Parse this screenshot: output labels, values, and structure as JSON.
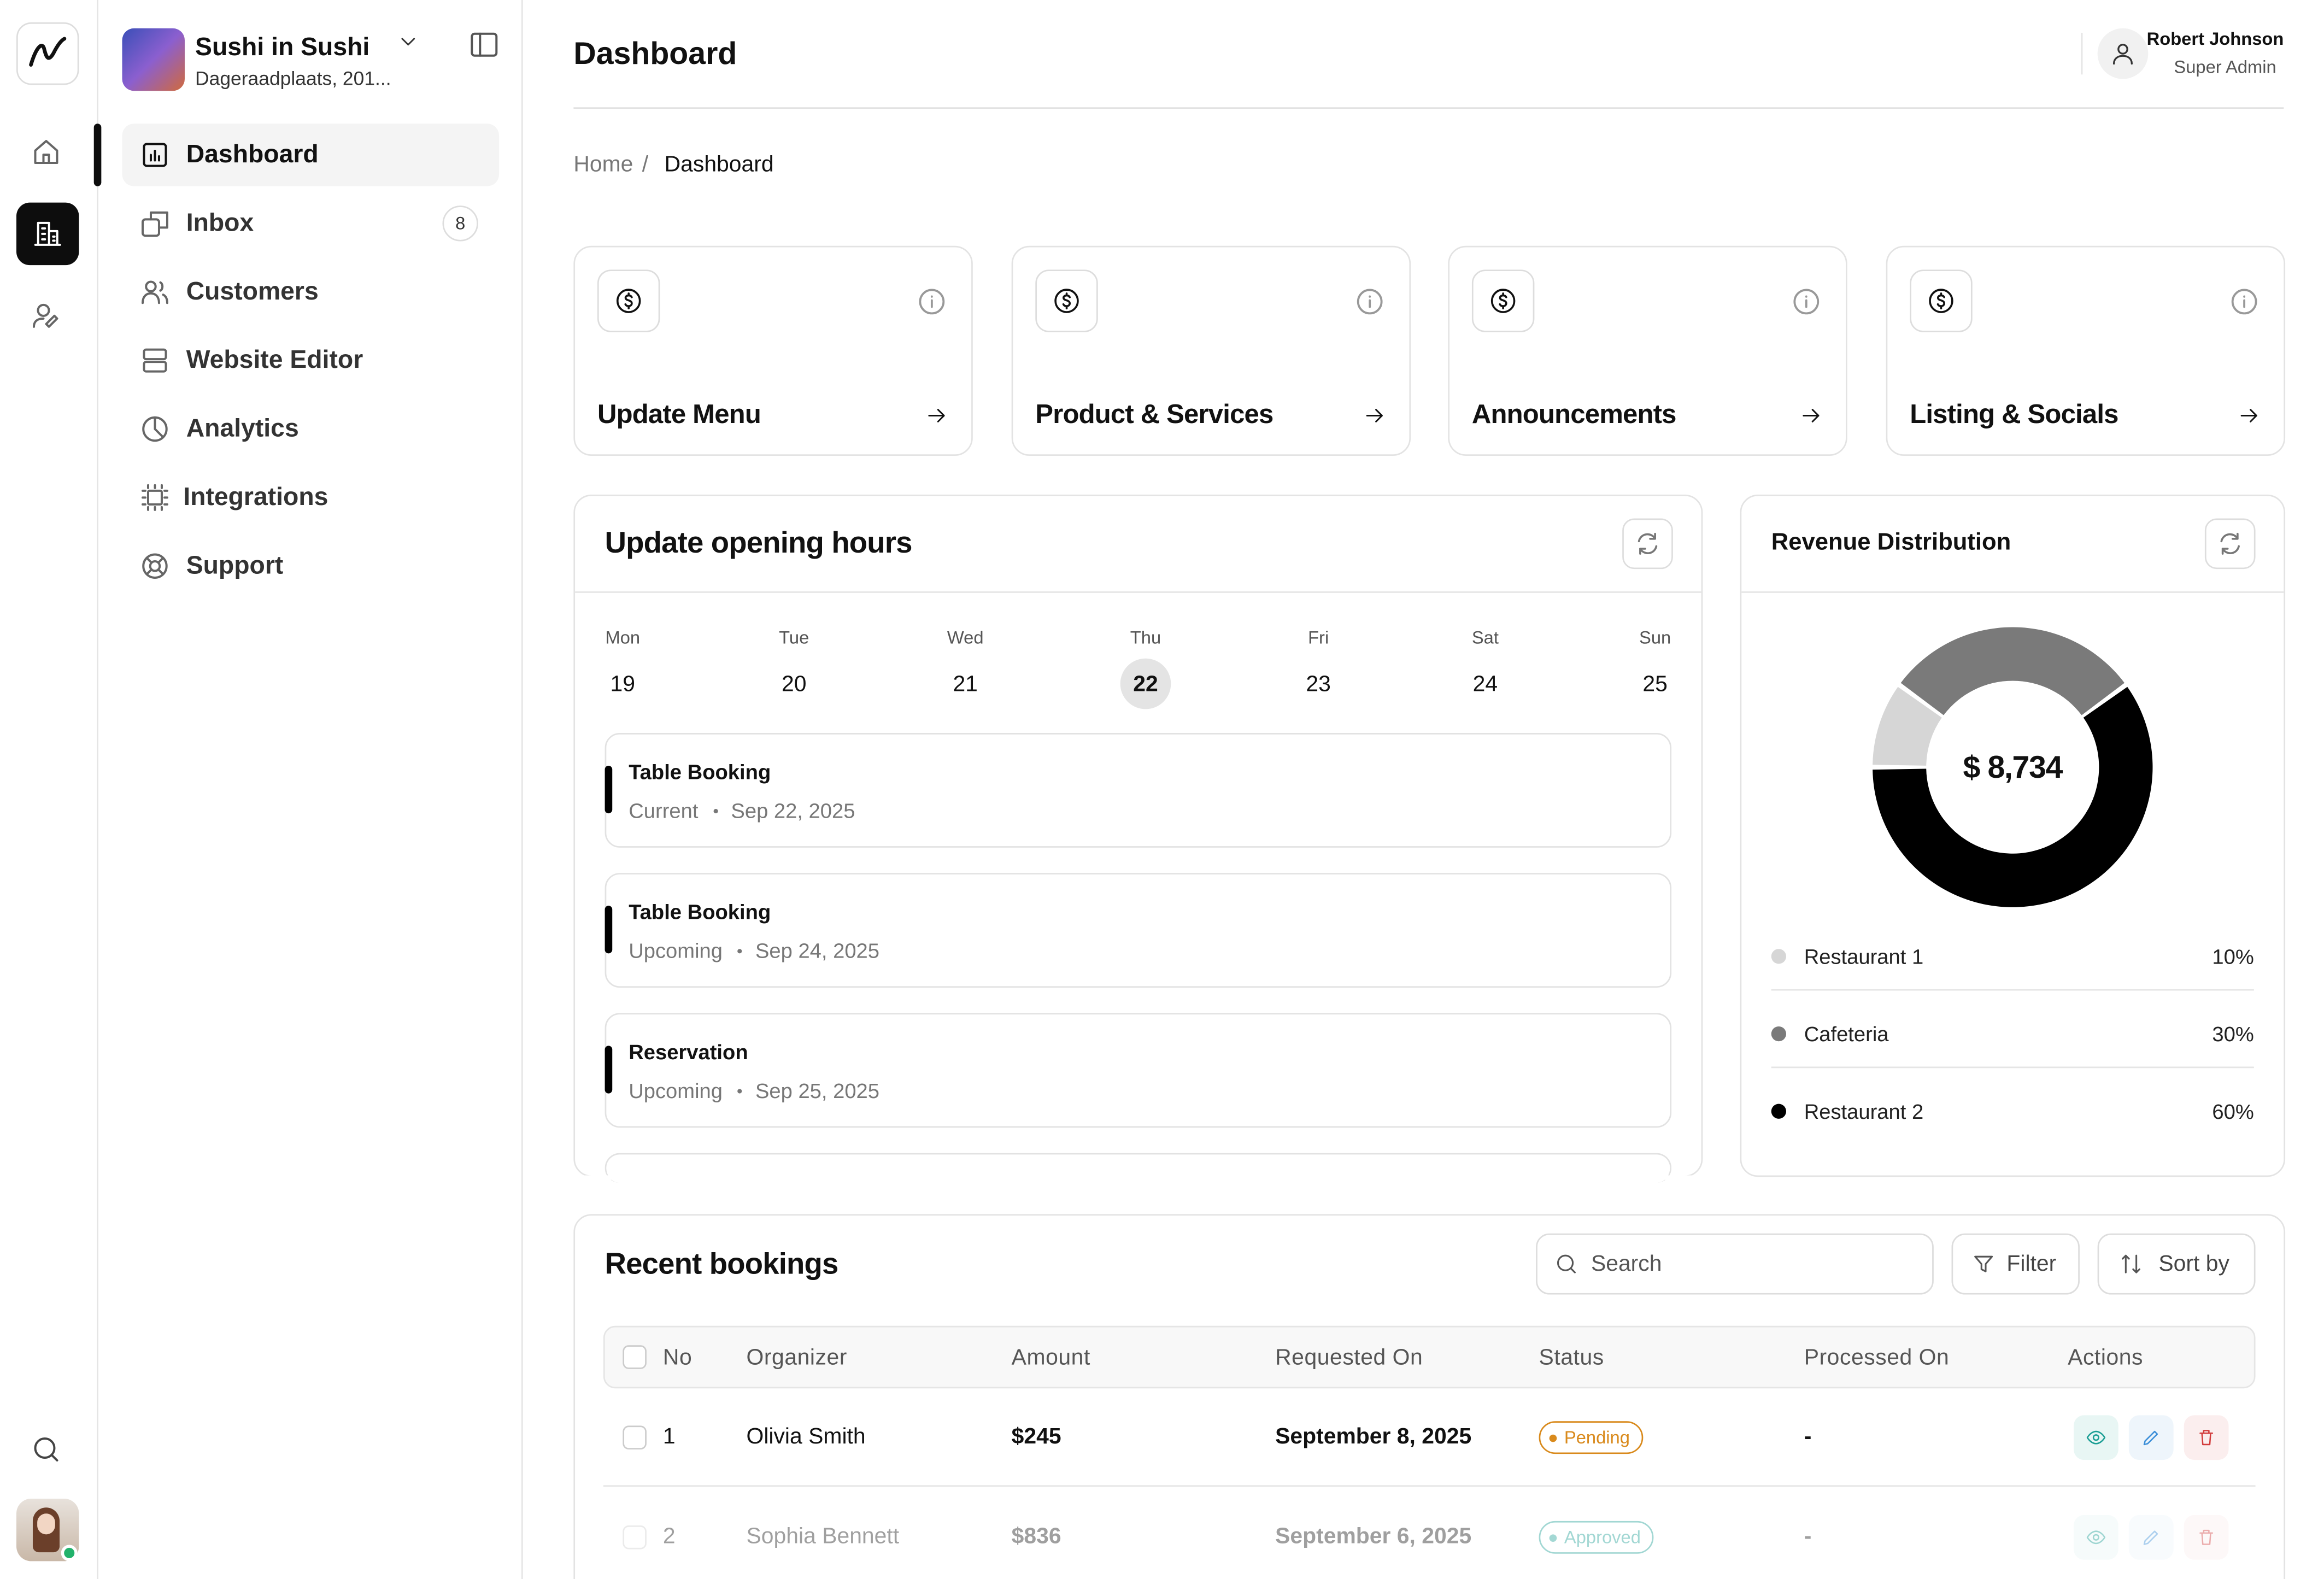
{
  "brand": {
    "name": "Sushi in Sushi",
    "address": "Dageraadplaats, 201..."
  },
  "nav": [
    {
      "label": "Dashboard"
    },
    {
      "label": "Inbox",
      "badge": 8
    },
    {
      "label": "Customers"
    },
    {
      "label": "Website Editor"
    },
    {
      "label": "Analytics"
    },
    {
      "label": "Integrations"
    },
    {
      "label": "Support"
    }
  ],
  "header": {
    "title": "Dashboard",
    "user_name": "Robert Johnson",
    "user_role": "Super Admin"
  },
  "breadcrumb": [
    "Home",
    "Dashboard"
  ],
  "cards": [
    "Update Menu",
    "Product & Services",
    "Announcements",
    "Listing & Socials"
  ],
  "opening_hours": {
    "title": "Update opening hours",
    "days": [
      {
        "name": "Mon",
        "date": 19
      },
      {
        "name": "Tue",
        "date": 20
      },
      {
        "name": "Wed",
        "date": 21
      },
      {
        "name": "Thu",
        "date": 22,
        "selected": true
      },
      {
        "name": "Fri",
        "date": 23
      },
      {
        "name": "Sat",
        "date": 24
      },
      {
        "name": "Sun",
        "date": 25
      }
    ],
    "events": [
      {
        "title": "Table Booking",
        "status": "Current",
        "date": "Sep 22, 2025"
      },
      {
        "title": "Table Booking",
        "status": "Upcoming",
        "date": "Sep 24, 2025"
      },
      {
        "title": "Reservation",
        "status": "Upcoming",
        "date": "Sep 25, 2025"
      }
    ]
  },
  "revenue": {
    "type": "pie",
    "title": "Revenue Distribution",
    "center_label": "$ 8,734",
    "categories": [
      "Restaurant 1",
      "Cafeteria",
      "Restaurant 2"
    ],
    "values": [
      10,
      30,
      60
    ],
    "value_labels": [
      "10%",
      "30%",
      "60%"
    ],
    "colors": [
      "#d6d6d6",
      "#7a7a7a",
      "#000000"
    ]
  },
  "bookings": {
    "title": "Recent bookings",
    "search": "Search",
    "filter": "Filter",
    "sort": "Sort by",
    "columns": [
      "No",
      "Organizer",
      "Amount",
      "Requested On",
      "Status",
      "Processed On",
      "Actions"
    ],
    "rows": [
      [
        "1",
        "Olivia Smith",
        "$245",
        "September 8, 2025",
        "Pending",
        "-"
      ],
      [
        "2",
        "Sophia Bennett",
        "$836",
        "September 6, 2025",
        "Approved",
        "-"
      ]
    ]
  }
}
